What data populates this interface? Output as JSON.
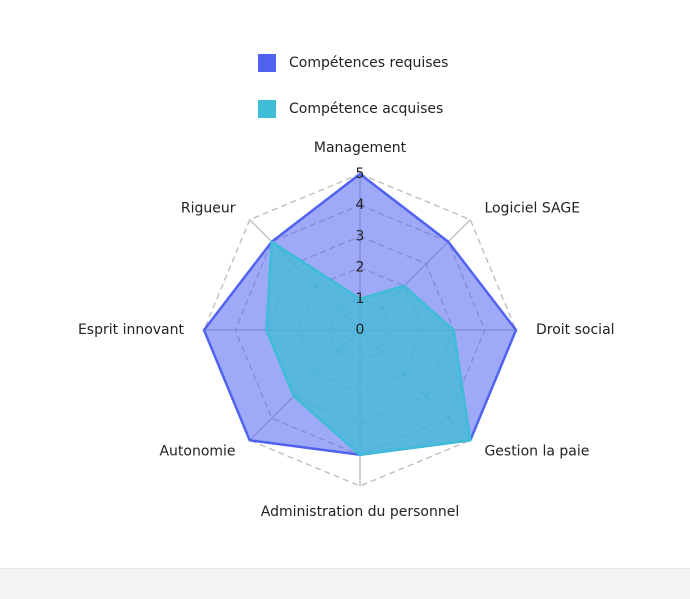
{
  "chart_data": {
    "type": "radar",
    "categories": [
      "Management",
      "Logiciel SAGE",
      "Droit social",
      "Gestion la paie",
      "Administration du personnel",
      "Autonomie",
      "Esprit innovant",
      "Rigueur"
    ],
    "series": [
      {
        "name": "Compétences requises",
        "color": "#4f63f0",
        "values": [
          5,
          4,
          5,
          5,
          4,
          5,
          5,
          4
        ]
      },
      {
        "name": "Compétence acquises",
        "color": "#3fbcd6",
        "values": [
          1,
          2,
          3,
          5,
          4,
          3,
          3,
          4
        ]
      }
    ],
    "rlim": [
      0,
      5
    ],
    "rticks": [
      0,
      1,
      2,
      3,
      4,
      5
    ],
    "grid": true
  }
}
